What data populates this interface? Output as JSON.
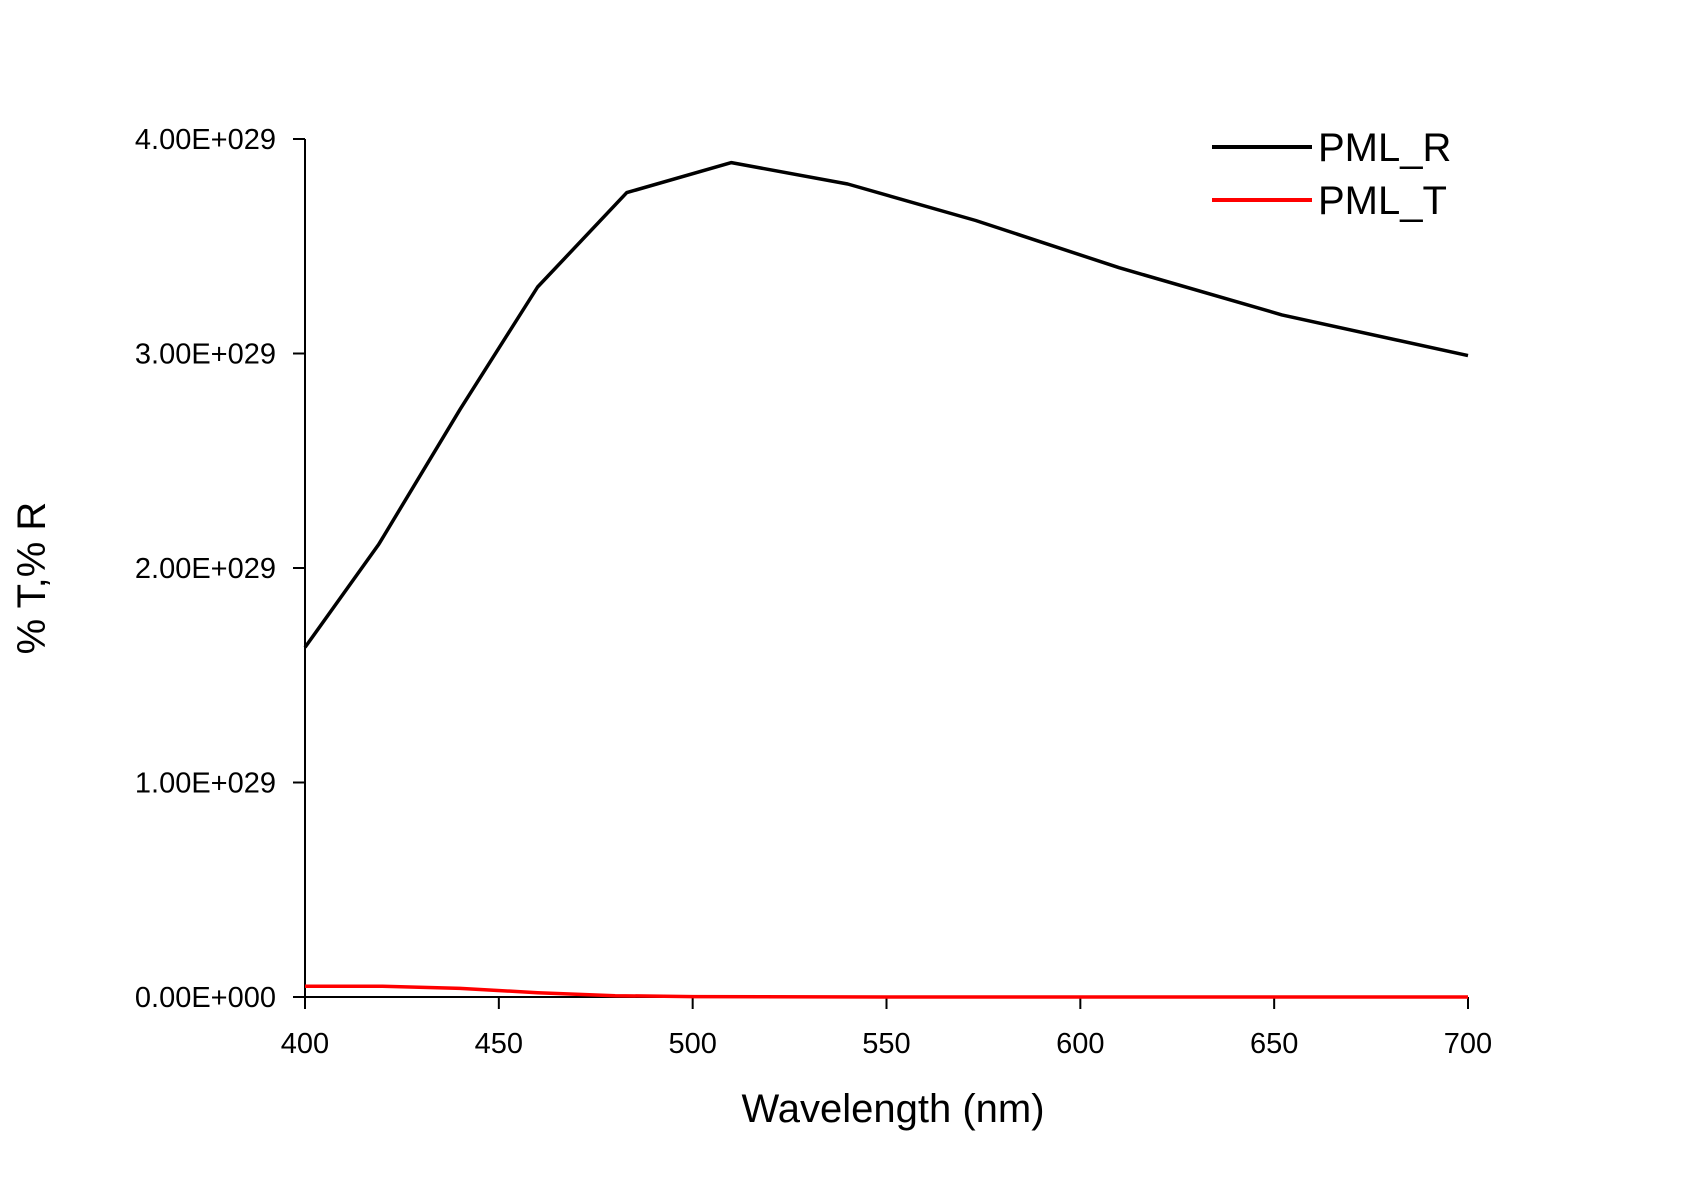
{
  "chart_data": {
    "type": "line",
    "title": "",
    "xlabel": "Wavelength (nm)",
    "ylabel": "% T,% R",
    "xlim": [
      400,
      700
    ],
    "ylim": [
      0,
      4e+29
    ],
    "grid": false,
    "legend_position": "top-right",
    "x_ticks": [
      400,
      450,
      500,
      550,
      600,
      650,
      700
    ],
    "x_tick_labels": [
      "400",
      "450",
      "500",
      "550",
      "600",
      "650",
      "700"
    ],
    "y_ticks": [
      0,
      1e+29,
      2e+29,
      3e+29,
      4e+29
    ],
    "y_tick_labels": [
      "0.00E+000",
      "1.00E+029",
      "2.00E+029",
      "3.00E+029",
      "4.00E+029"
    ],
    "series": [
      {
        "name": "PML_R",
        "color": "#000000",
        "x": [
          400,
          419,
          440,
          460,
          483,
          510,
          540,
          573,
          610,
          652,
          700
        ],
        "y": [
          1.63e+29,
          2.11e+29,
          2.74e+29,
          3.31e+29,
          3.75e+29,
          3.89e+29,
          3.79e+29,
          3.62e+29,
          3.4e+29,
          3.18e+29,
          2.99e+29
        ]
      },
      {
        "name": "PML_T",
        "color": "#ff0000",
        "x": [
          400,
          420,
          440,
          460,
          480,
          500,
          550,
          600,
          650,
          700
        ],
        "y": [
          5e+27,
          5e+27,
          4e+27,
          2e+27,
          6e+26,
          2e+26,
          0.0,
          0.0,
          0.0,
          0.0
        ]
      }
    ]
  }
}
